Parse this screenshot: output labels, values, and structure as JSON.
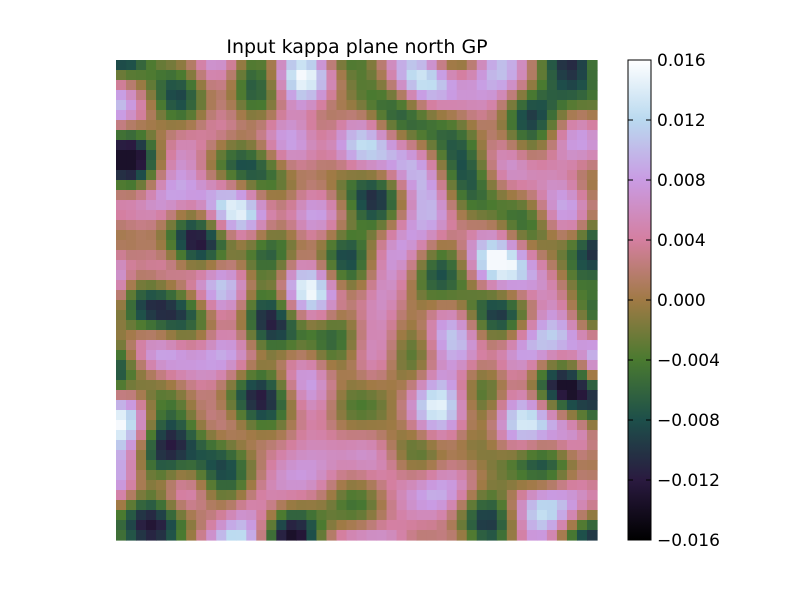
{
  "chart_data": {
    "type": "heatmap",
    "title": "Input kappa plane north GP",
    "xlabel": "",
    "ylabel": "",
    "grid": false,
    "colormap": "cubehelix",
    "colorbar": {
      "range": [
        -0.016,
        0.016
      ],
      "ticks": [
        "0.016",
        "0.012",
        "0.008",
        "0.004",
        "0.000",
        "−0.004",
        "−0.008",
        "−0.012",
        "−0.016"
      ],
      "tick_values": [
        0.016,
        0.012,
        0.008,
        0.004,
        0.0,
        -0.004,
        -0.008,
        -0.012,
        -0.016
      ],
      "stops": [
        {
          "value": 0.016,
          "color": "#ffffff"
        },
        {
          "value": 0.012,
          "color": "#b9d9ef"
        },
        {
          "value": 0.008,
          "color": "#c99be3"
        },
        {
          "value": 0.004,
          "color": "#d47fa0"
        },
        {
          "value": 0.0,
          "color": "#a07a45"
        },
        {
          "value": -0.004,
          "color": "#4a7a30"
        },
        {
          "value": -0.008,
          "color": "#1d4f4a"
        },
        {
          "value": -0.012,
          "color": "#2a1a40"
        },
        {
          "value": -0.016,
          "color": "#000000"
        }
      ]
    },
    "field": {
      "grid_size": 48,
      "value_range": [
        -0.016,
        0.016
      ],
      "description_free": true
    }
  }
}
